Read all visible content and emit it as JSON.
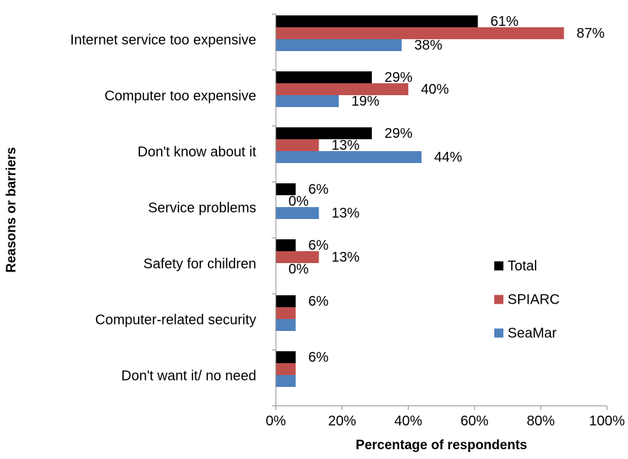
{
  "chart_data": {
    "type": "bar",
    "orientation": "horizontal",
    "categories": [
      "Internet service too expensive",
      "Computer too expensive",
      "Don't know about it",
      "Service problems",
      "Safety for children",
      "Computer-related security",
      "Don't want it/ no need"
    ],
    "series": [
      {
        "name": "Total",
        "color": "#000000",
        "values": [
          61,
          29,
          29,
          6,
          6,
          6,
          6
        ]
      },
      {
        "name": "SPIARC",
        "color": "#C0504D",
        "values": [
          87,
          40,
          13,
          0,
          13,
          6,
          6
        ]
      },
      {
        "name": "SeaMar",
        "color": "#4F81BD",
        "values": [
          38,
          19,
          44,
          13,
          0,
          6,
          6
        ]
      }
    ],
    "data_labels": [
      [
        "61%",
        "87%",
        "38%"
      ],
      [
        "29%",
        "40%",
        "19%"
      ],
      [
        "29%",
        "13%",
        "44%"
      ],
      [
        "6%",
        "0%",
        "13%"
      ],
      [
        "6%",
        "13%",
        "0%"
      ],
      [
        "6%",
        null,
        null
      ],
      [
        "6%",
        null,
        null
      ]
    ],
    "xticks": [
      "0%",
      "20%",
      "40%",
      "60%",
      "80%",
      "100%"
    ],
    "xlim": [
      0,
      100
    ],
    "xlabel": "Percentage of respondents",
    "ylabel": "Reasons or barriers",
    "legend_position": "right",
    "grid": false
  }
}
